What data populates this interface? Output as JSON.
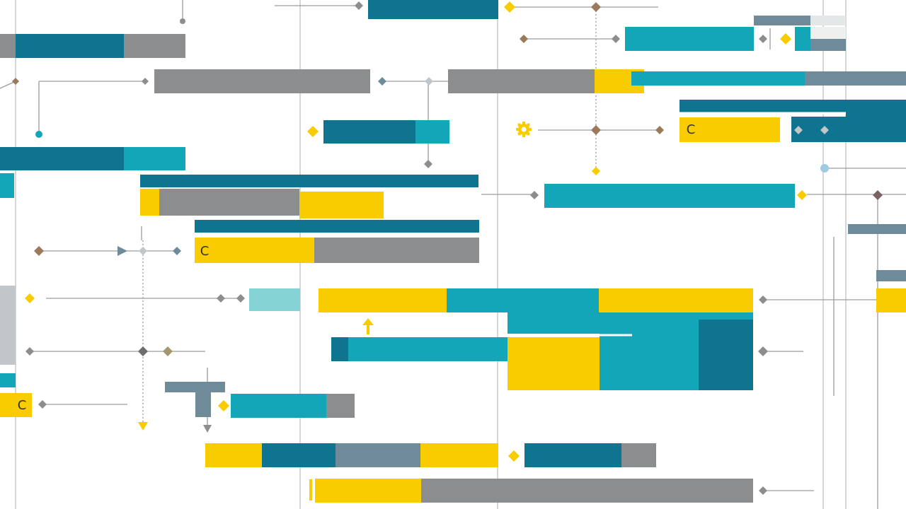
{
  "diagram": {
    "palette": {
      "teal_dark": "#0f7490",
      "teal": "#12a6b8",
      "teal_light": "#86d3d6",
      "gray": "#8b8d8f",
      "gray_light": "#c2c6c8",
      "gray_blue": "#6f8a98",
      "yellow": "#f9cc00",
      "brown": "#9a7a5a",
      "line": "#9a9c9e"
    },
    "glyph_text": "C",
    "node_labels": [
      "C",
      "C",
      "C"
    ],
    "icons": [
      "diamond-icon",
      "arrow-up-icon",
      "arrow-down-icon",
      "arrow-right-icon",
      "gear-icon"
    ]
  }
}
